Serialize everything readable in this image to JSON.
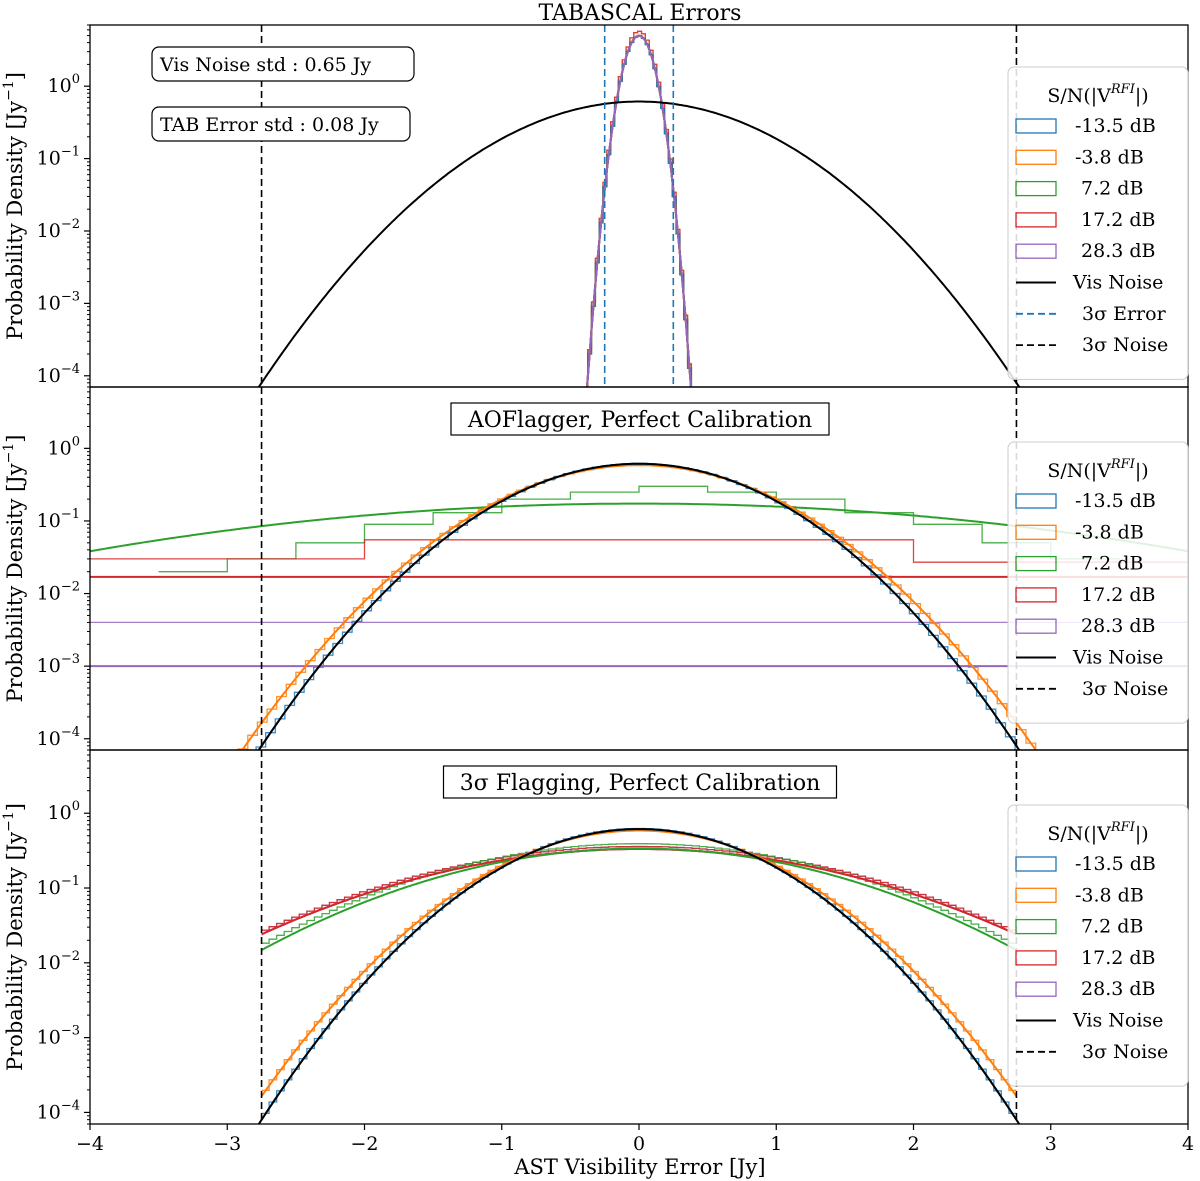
{
  "chart_data": {
    "type": "line",
    "figure_title": "TABASCAL Errors",
    "xlabel": "AST Visibility Error [Jy]",
    "ylabel": "Probability Density [Jy$^{-1}$]",
    "ylabel_display": "Probability Density [Jy",
    "ylabel_sup": "−1",
    "xlim": [
      -4,
      4
    ],
    "ylim": [
      7e-05,
      7
    ],
    "yscale": "log",
    "x_ticks": [
      -4,
      -3,
      -2,
      -1,
      0,
      1,
      2,
      3,
      4
    ],
    "x_tick_labels": [
      "−4",
      "−3",
      "−2",
      "−1",
      "0",
      "1",
      "2",
      "3",
      "4"
    ],
    "y_ticks": [
      {
        "base": "10",
        "exp": "0"
      },
      {
        "base": "10",
        "exp": "−1"
      },
      {
        "base": "10",
        "exp": "−2"
      },
      {
        "base": "10",
        "exp": "−3"
      },
      {
        "base": "10",
        "exp": "−4"
      }
    ],
    "colors": {
      "s1": "#1f77b4",
      "s2": "#ff7f0e",
      "s3": "#2ca02c",
      "s4": "#d62728",
      "s5": "#9467bd",
      "vis_noise": "#000000",
      "err3": "#1f77b4",
      "noise3": "#000000"
    },
    "legend_title": "S/N(|V",
    "legend_title_sup": "RFI",
    "legend_title_end": "|)",
    "series_labels": [
      "-13.5 dB",
      "-3.8 dB",
      " 7.2 dB",
      " 17.2 dB",
      " 28.3 dB"
    ],
    "vis_noise_label": "Vis Noise",
    "err3_label": "3σ Error",
    "noise3_label": "3σ Noise",
    "vis_noise_std_jy": 0.65,
    "noise_3sigma_x": [
      -2.75,
      2.75
    ],
    "panels": [
      {
        "title": "TABASCAL Errors",
        "annotations": [
          "Vis Noise std : 0.65 Jy",
          "TAB Error std : 0.08 Jy"
        ],
        "error_std_jy": 0.08,
        "error_3sigma_x": [
          -0.25,
          0.25
        ],
        "series_std_jy": [
          0.08,
          0.08,
          0.08,
          0.08,
          0.08
        ],
        "histogram_range_jy": [
          -0.85,
          0.85
        ]
      },
      {
        "title": "AOFlagger, Perfect Calibration",
        "series_fit_std_jy": [
          0.65,
          0.68,
          2.3,
          null,
          null
        ],
        "series_flat_density": [
          null,
          null,
          null,
          0.017,
          0.001
        ],
        "histogram_levels": {
          "7.2 dB": [
            0.02,
            0.03,
            0.05,
            0.09,
            0.13,
            0.2,
            0.25,
            0.3,
            0.25,
            0.2,
            0.13,
            0.09,
            0.05,
            0.03
          ],
          "17.2 dB": [
            0.03,
            0.055,
            0.055,
            0.027
          ],
          "28.3 dB": [
            0.004
          ]
        }
      },
      {
        "title": "3σ Flagging, Perfect Calibration",
        "series_fit_std_jy": [
          0.65,
          0.68,
          1.1,
          1.2,
          1.2
        ]
      }
    ]
  }
}
